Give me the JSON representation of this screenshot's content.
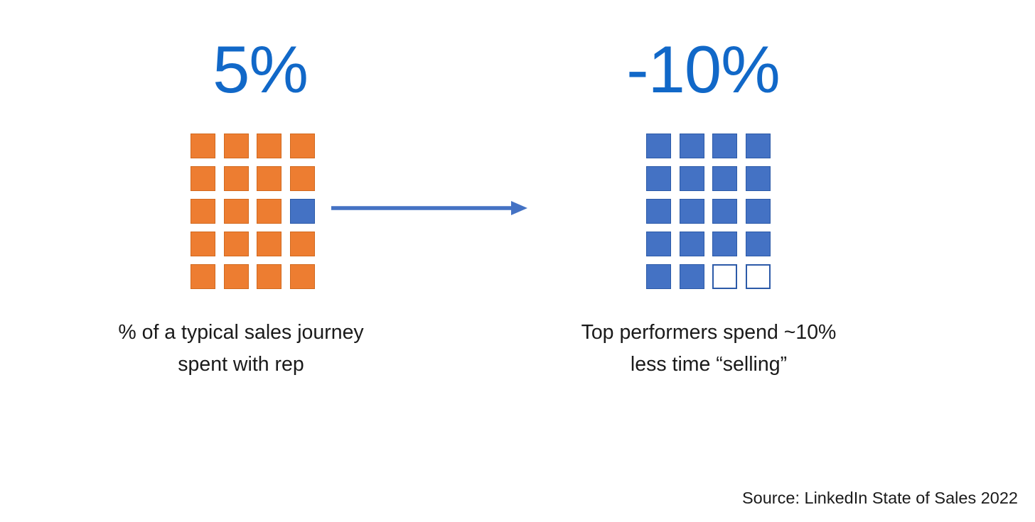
{
  "colors": {
    "background": "#FFFFFF",
    "title_blue": "#1168C8",
    "orange_fill": "#ED7D31",
    "orange_border": "#D2691E",
    "blue_fill": "#4472C4",
    "blue_border": "#2C5AA8",
    "outline_fill": "#FFFFFF",
    "arrow": "#4472C4",
    "text": "#1A1A1A"
  },
  "source": "Source: LinkedIn State of Sales 2022",
  "chart_data": [
    {
      "type": "waffle",
      "title": "5%",
      "caption_lines": [
        "% of a typical sales journey",
        "spent with rep"
      ],
      "rows": 5,
      "cols": 4,
      "cells_total": 20,
      "cells_highlighted_blue": 1,
      "percent_represented": 5,
      "fill_color": "#ED7D31",
      "highlight_color": "#4472C4",
      "cells": [
        "orange",
        "orange",
        "orange",
        "orange",
        "orange",
        "orange",
        "orange",
        "orange",
        "orange",
        "orange",
        "orange",
        "blue",
        "orange",
        "orange",
        "orange",
        "orange",
        "orange",
        "orange",
        "orange",
        "orange"
      ]
    },
    {
      "type": "waffle",
      "title": "-10%",
      "caption_lines": [
        "Top performers spend ~10%",
        "less time “selling”"
      ],
      "rows": 5,
      "cols": 4,
      "cells_total": 20,
      "cells_filled": 18,
      "cells_outlined": 2,
      "percent_represented": -10,
      "fill_color": "#4472C4",
      "cells": [
        "blue",
        "blue",
        "blue",
        "blue",
        "blue",
        "blue",
        "blue",
        "blue",
        "blue",
        "blue",
        "blue",
        "blue",
        "blue",
        "blue",
        "blue",
        "blue",
        "blue",
        "blue",
        "outline",
        "outline"
      ]
    }
  ]
}
